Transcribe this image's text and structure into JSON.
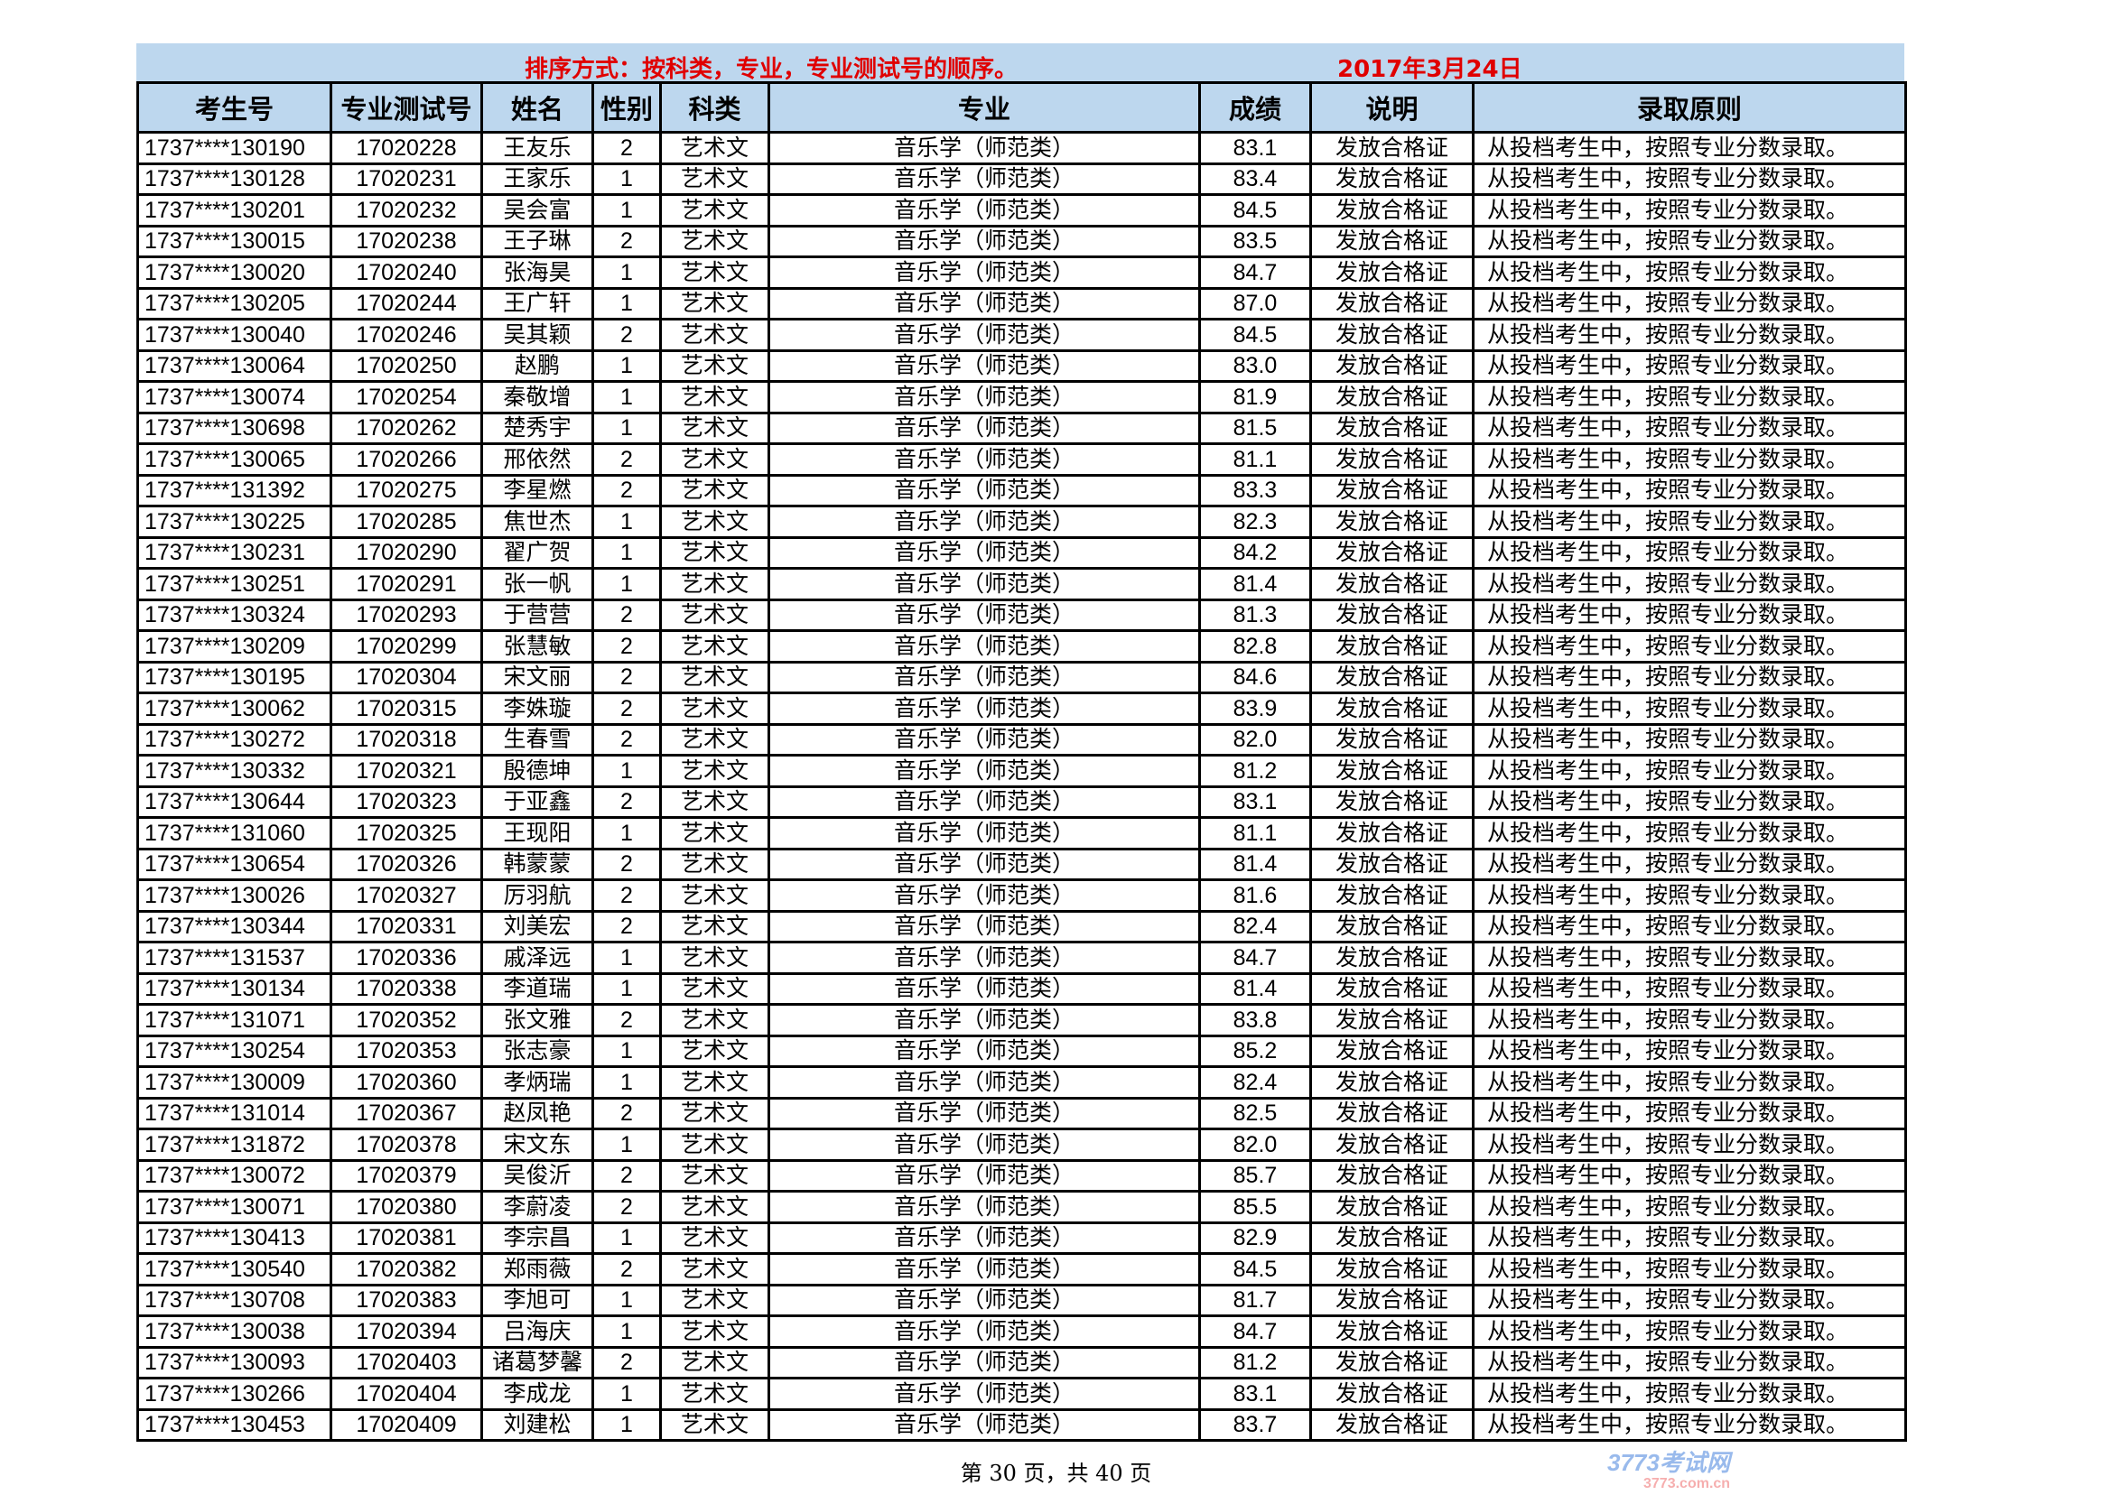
{
  "title_band": {
    "sort_note": "排序方式：按科类，专业，专业测试号的顺序。",
    "date": "2017年3月24日"
  },
  "headers": [
    "考生号",
    "专业测试号",
    "姓名",
    "性别",
    "科类",
    "专业",
    "成绩",
    "说明",
    "录取原则"
  ],
  "shared": {
    "category": "艺术文",
    "major": "音乐学（师范类）",
    "note": "发放合格证",
    "principle": "从投档考生中，按照专业分数录取。"
  },
  "rows": [
    [
      "1737****130190",
      "17020228",
      "王友乐",
      "2",
      "83.1"
    ],
    [
      "1737****130128",
      "17020231",
      "王家乐",
      "1",
      "83.4"
    ],
    [
      "1737****130201",
      "17020232",
      "吴会富",
      "1",
      "84.5"
    ],
    [
      "1737****130015",
      "17020238",
      "王子琳",
      "2",
      "83.5"
    ],
    [
      "1737****130020",
      "17020240",
      "张海昊",
      "1",
      "84.7"
    ],
    [
      "1737****130205",
      "17020244",
      "王广轩",
      "1",
      "87.0"
    ],
    [
      "1737****130040",
      "17020246",
      "吴其颖",
      "2",
      "84.5"
    ],
    [
      "1737****130064",
      "17020250",
      "赵鹏",
      "1",
      "83.0"
    ],
    [
      "1737****130074",
      "17020254",
      "秦敬增",
      "1",
      "81.9"
    ],
    [
      "1737****130698",
      "17020262",
      "楚秀宇",
      "1",
      "81.5"
    ],
    [
      "1737****130065",
      "17020266",
      "邢依然",
      "2",
      "81.1"
    ],
    [
      "1737****131392",
      "17020275",
      "李星燃",
      "2",
      "83.3"
    ],
    [
      "1737****130225",
      "17020285",
      "焦世杰",
      "1",
      "82.3"
    ],
    [
      "1737****130231",
      "17020290",
      "翟广贺",
      "1",
      "84.2"
    ],
    [
      "1737****130251",
      "17020291",
      "张一帆",
      "1",
      "81.4"
    ],
    [
      "1737****130324",
      "17020293",
      "于营营",
      "2",
      "81.3"
    ],
    [
      "1737****130209",
      "17020299",
      "张慧敏",
      "2",
      "82.8"
    ],
    [
      "1737****130195",
      "17020304",
      "宋文丽",
      "2",
      "84.6"
    ],
    [
      "1737****130062",
      "17020315",
      "李姝璇",
      "2",
      "83.9"
    ],
    [
      "1737****130272",
      "17020318",
      "生春雪",
      "2",
      "82.0"
    ],
    [
      "1737****130332",
      "17020321",
      "殷德坤",
      "1",
      "81.2"
    ],
    [
      "1737****130644",
      "17020323",
      "于亚鑫",
      "2",
      "83.1"
    ],
    [
      "1737****131060",
      "17020325",
      "王现阳",
      "1",
      "81.1"
    ],
    [
      "1737****130654",
      "17020326",
      "韩蒙蒙",
      "2",
      "81.4"
    ],
    [
      "1737****130026",
      "17020327",
      "厉羽航",
      "2",
      "81.6"
    ],
    [
      "1737****130344",
      "17020331",
      "刘美宏",
      "2",
      "82.4"
    ],
    [
      "1737****131537",
      "17020336",
      "戚泽远",
      "1",
      "84.7"
    ],
    [
      "1737****130134",
      "17020338",
      "李道瑞",
      "1",
      "81.4"
    ],
    [
      "1737****131071",
      "17020352",
      "张文雅",
      "2",
      "83.8"
    ],
    [
      "1737****130254",
      "17020353",
      "张志豪",
      "1",
      "85.2"
    ],
    [
      "1737****130009",
      "17020360",
      "孝炳瑞",
      "1",
      "82.4"
    ],
    [
      "1737****131014",
      "17020367",
      "赵凤艳",
      "2",
      "82.5"
    ],
    [
      "1737****131872",
      "17020378",
      "宋文东",
      "1",
      "82.0"
    ],
    [
      "1737****130072",
      "17020379",
      "吴俊沂",
      "2",
      "85.7"
    ],
    [
      "1737****130071",
      "17020380",
      "李蔚凌",
      "2",
      "85.5"
    ],
    [
      "1737****130413",
      "17020381",
      "李宗昌",
      "1",
      "82.9"
    ],
    [
      "1737****130540",
      "17020382",
      "郑雨薇",
      "2",
      "84.5"
    ],
    [
      "1737****130708",
      "17020383",
      "李旭可",
      "1",
      "81.7"
    ],
    [
      "1737****130038",
      "17020394",
      "吕海庆",
      "1",
      "84.7"
    ],
    [
      "1737****130093",
      "17020403",
      "诸葛梦馨",
      "2",
      "81.2"
    ],
    [
      "1737****130266",
      "17020404",
      "李成龙",
      "1",
      "83.1"
    ],
    [
      "1737****130453",
      "17020409",
      "刘建松",
      "1",
      "83.7"
    ]
  ],
  "watermark": {
    "main": "3773考试网",
    "sub": "3773.com.cn"
  },
  "footer": {
    "page_info": "第 30 页，共 40 页"
  },
  "colors": {
    "header_bg": "#bdd7ee",
    "title_text": "#e00000"
  }
}
